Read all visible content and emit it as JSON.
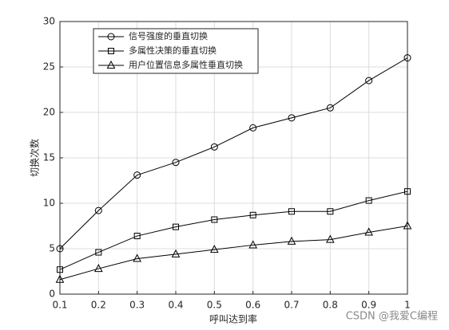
{
  "chart_data": {
    "type": "line",
    "x_label": "呼叫达到率",
    "y_label": "切换次数",
    "x": [
      0.1,
      0.2,
      0.3,
      0.4,
      0.5,
      0.6,
      0.7,
      0.8,
      0.9,
      1
    ],
    "series": [
      {
        "name": "信号强度的垂直切换",
        "color": "#000000",
        "marker": "circle",
        "values": [
          5.0,
          9.2,
          13.1,
          14.5,
          16.2,
          18.3,
          19.4,
          20.5,
          23.5,
          26.0
        ]
      },
      {
        "name": "多属性决策的垂直切换",
        "color": "#000000",
        "marker": "square",
        "values": [
          2.7,
          4.6,
          6.4,
          7.4,
          8.2,
          8.7,
          9.1,
          9.1,
          10.3,
          11.3
        ]
      },
      {
        "name": "用户位置信息多属性垂直切换",
        "color": "#000000",
        "marker": "triangle",
        "values": [
          1.6,
          2.8,
          3.9,
          4.4,
          4.9,
          5.4,
          5.8,
          6.0,
          6.8,
          7.5
        ]
      }
    ],
    "xlim": [
      0.1,
      1
    ],
    "ylim": [
      0,
      30
    ],
    "xticks": [
      0.1,
      0.2,
      0.3,
      0.4,
      0.5,
      0.6,
      0.7,
      0.8,
      0.9,
      1
    ],
    "yticks": [
      0,
      5,
      10,
      15,
      20,
      25,
      30
    ],
    "grid": true,
    "legend": "upper-left",
    "watermark": "CSDN @我爱C编程"
  }
}
